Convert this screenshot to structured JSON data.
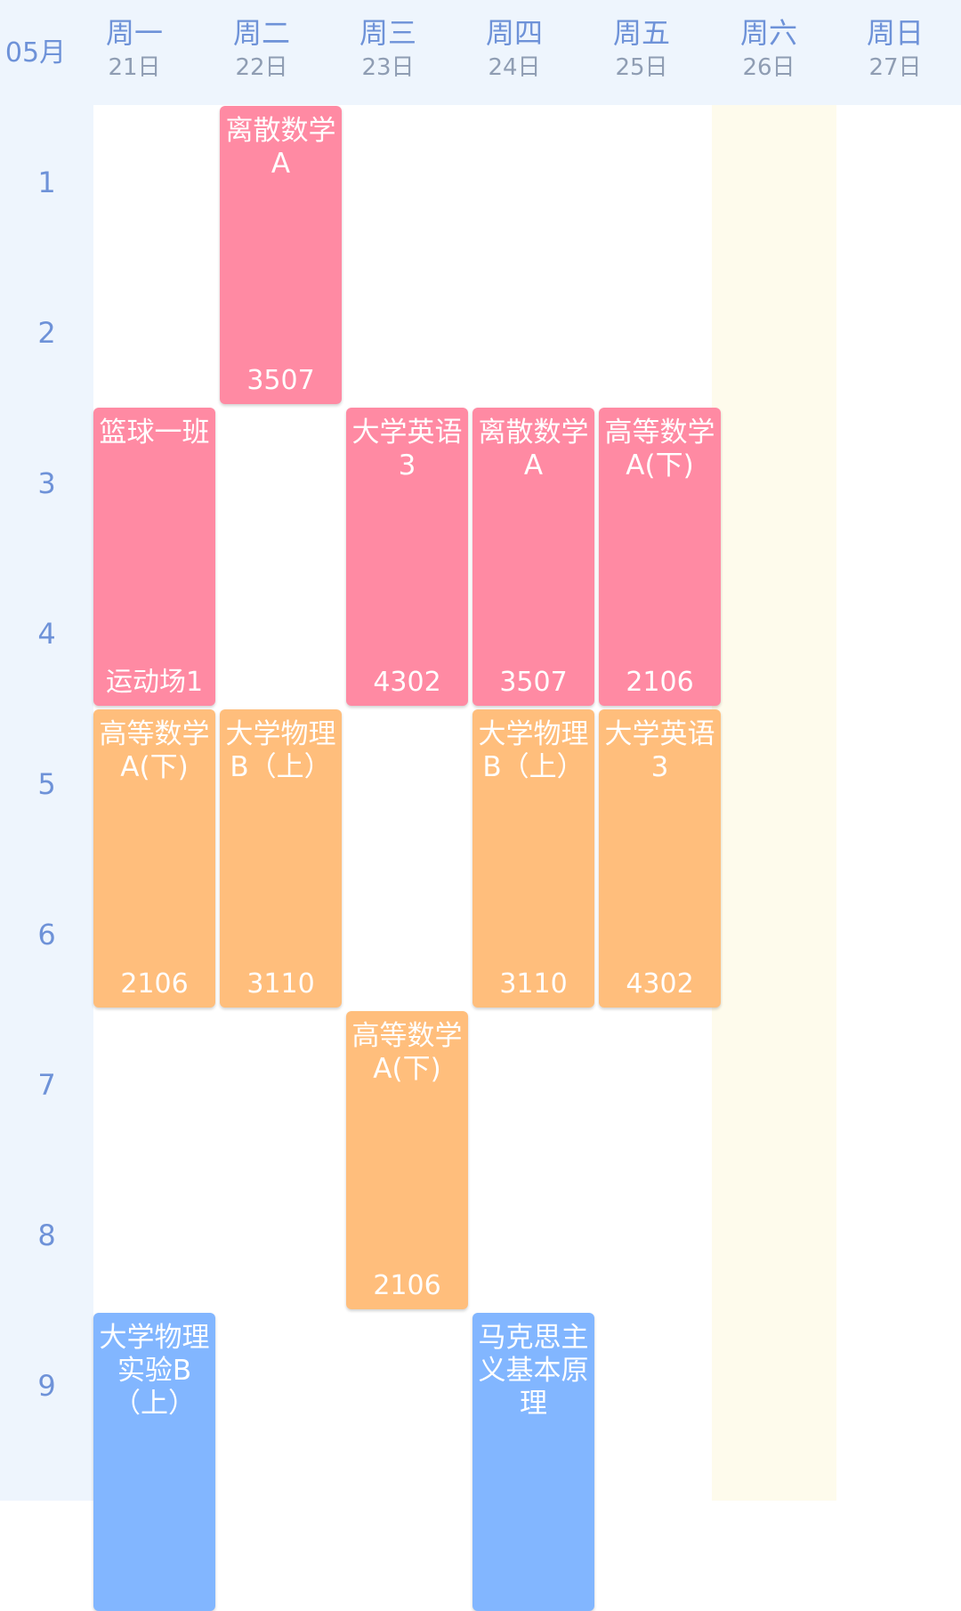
{
  "header": {
    "month": "05月",
    "days": [
      {
        "weekday": "周一",
        "date": "21日"
      },
      {
        "weekday": "周二",
        "date": "22日"
      },
      {
        "weekday": "周三",
        "date": "23日"
      },
      {
        "weekday": "周四",
        "date": "24日"
      },
      {
        "weekday": "周五",
        "date": "25日"
      },
      {
        "weekday": "周六",
        "date": "26日"
      },
      {
        "weekday": "周日",
        "date": "27日"
      }
    ]
  },
  "periods": [
    "1",
    "2",
    "3",
    "4",
    "5",
    "6",
    "7",
    "8",
    "9"
  ],
  "colors": {
    "pink": "#ff8aa3",
    "orange": "#ffbe7c",
    "blue": "#82b6ff",
    "saturday_bg": "#fefbec",
    "header_bg": "#eef5fd"
  },
  "courses": [
    {
      "name": "离散数学A",
      "room": "3507",
      "day": 2,
      "start_period": 1,
      "periods": 2,
      "color": "pink"
    },
    {
      "name": "篮球一班",
      "room": "运动场1",
      "day": 1,
      "start_period": 3,
      "periods": 2,
      "color": "pink"
    },
    {
      "name": "大学英语3",
      "room": "4302",
      "day": 3,
      "start_period": 3,
      "periods": 2,
      "color": "pink"
    },
    {
      "name": "离散数学A",
      "room": "3507",
      "day": 4,
      "start_period": 3,
      "periods": 2,
      "color": "pink"
    },
    {
      "name": "高等数学A(下)",
      "room": "2106",
      "day": 5,
      "start_period": 3,
      "periods": 2,
      "color": "pink"
    },
    {
      "name": "高等数学A(下)",
      "room": "2106",
      "day": 1,
      "start_period": 5,
      "periods": 2,
      "color": "orange"
    },
    {
      "name": "大学物理B（上）",
      "room": "3110",
      "day": 2,
      "start_period": 5,
      "periods": 2,
      "color": "orange"
    },
    {
      "name": "大学物理B（上）",
      "room": "3110",
      "day": 4,
      "start_period": 5,
      "periods": 2,
      "color": "orange"
    },
    {
      "name": "大学英语3",
      "room": "4302",
      "day": 5,
      "start_period": 5,
      "periods": 2,
      "color": "orange"
    },
    {
      "name": "高等数学A(下)",
      "room": "2106",
      "day": 3,
      "start_period": 7,
      "periods": 2,
      "color": "orange"
    },
    {
      "name": "大学物理实验B（上）",
      "room": "",
      "day": 1,
      "start_period": 9,
      "periods": 2,
      "color": "blue"
    },
    {
      "name": "马克思主义基本原理",
      "room": "",
      "day": 4,
      "start_period": 9,
      "periods": 2,
      "color": "blue"
    }
  ]
}
